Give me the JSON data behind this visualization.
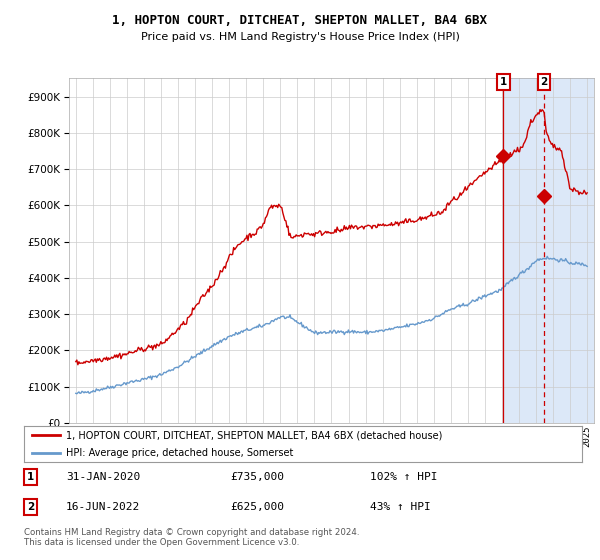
{
  "title1": "1, HOPTON COURT, DITCHEAT, SHEPTON MALLET, BA4 6BX",
  "title2": "Price paid vs. HM Land Registry's House Price Index (HPI)",
  "legend_line1": "1, HOPTON COURT, DITCHEAT, SHEPTON MALLET, BA4 6BX (detached house)",
  "legend_line2": "HPI: Average price, detached house, Somerset",
  "annotation1_date": "31-JAN-2020",
  "annotation1_price": "£735,000",
  "annotation1_hpi": "102% ↑ HPI",
  "annotation2_date": "16-JUN-2022",
  "annotation2_price": "£625,000",
  "annotation2_hpi": "43% ↑ HPI",
  "footnote": "Contains HM Land Registry data © Crown copyright and database right 2024.\nThis data is licensed under the Open Government Licence v3.0.",
  "red_color": "#cc0000",
  "blue_color": "#6699cc",
  "shade_color": "#dce8f8",
  "grid_color": "#cccccc",
  "sale1_year": 2020.08,
  "sale1_value": 735000,
  "sale2_year": 2022.46,
  "sale2_value": 625000,
  "ylim": [
    0,
    950000
  ],
  "yticks": [
    0,
    100000,
    200000,
    300000,
    400000,
    500000,
    600000,
    700000,
    800000,
    900000
  ],
  "xlim_left": 1994.6,
  "xlim_right": 2025.4
}
